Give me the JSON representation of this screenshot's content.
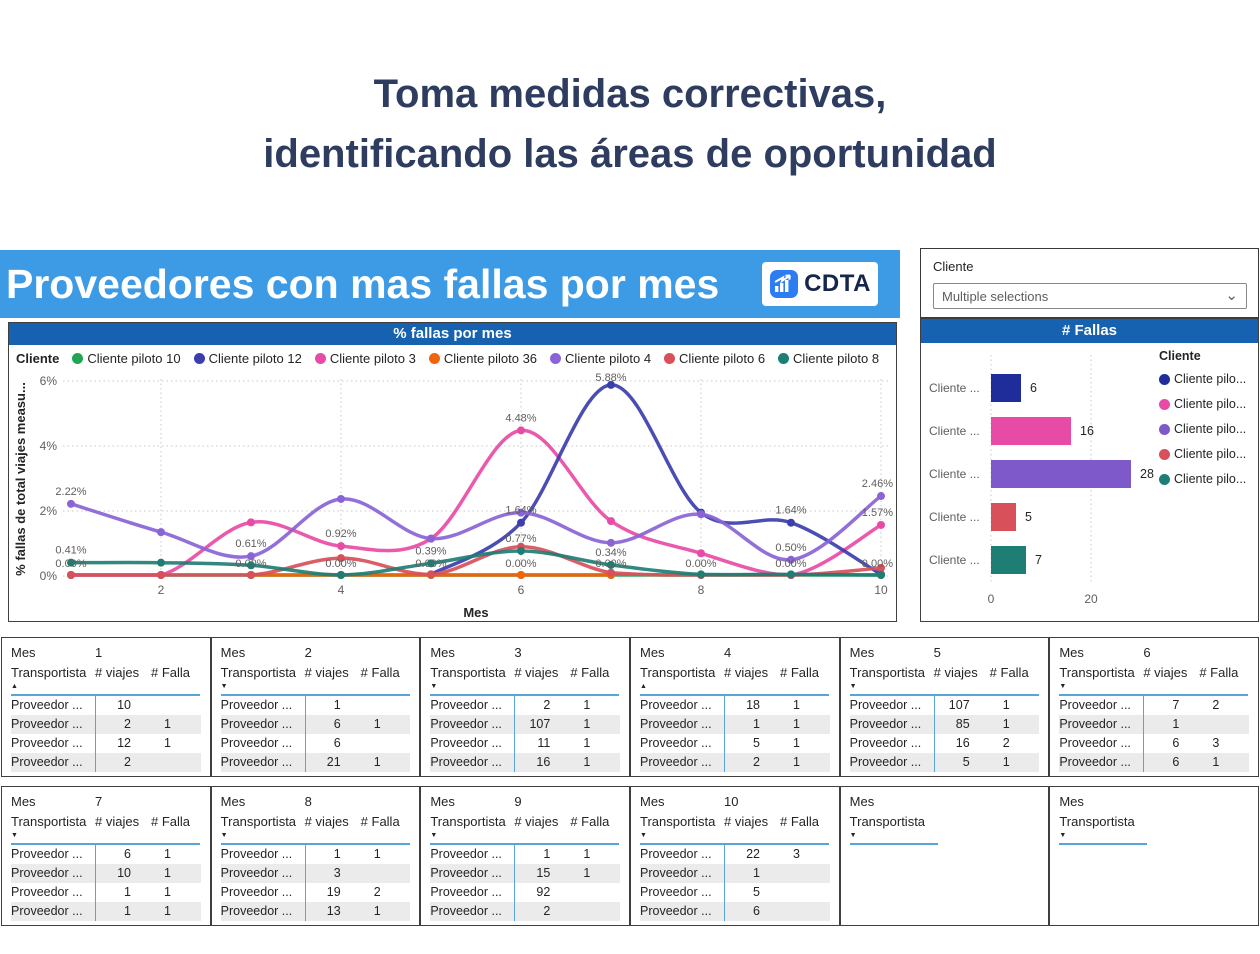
{
  "page_title": {
    "line1": "Toma medidas correctivas,",
    "line2": "identificando las áreas de oportunidad"
  },
  "header": {
    "title": "Proveedores con mas fallas por mes",
    "logo_text": "CDTA"
  },
  "filter": {
    "label": "Cliente",
    "value": "Multiple selections"
  },
  "chart_data": [
    {
      "type": "line",
      "title": "% fallas por mes",
      "xlabel": "Mes",
      "ylabel": "% fallas de total viajes measu...",
      "legend_title": "Cliente",
      "legend_position": "top",
      "grid": true,
      "x": [
        1,
        2,
        3,
        4,
        5,
        6,
        7,
        8,
        9,
        10
      ],
      "x_ticks": [
        2,
        4,
        6,
        8,
        10
      ],
      "y_ticks": [
        {
          "v": 0,
          "t": "0%"
        },
        {
          "v": 2,
          "t": "2%"
        },
        {
          "v": 4,
          "t": "4%"
        },
        {
          "v": 6,
          "t": "6%"
        }
      ],
      "ylim": [
        0,
        6
      ],
      "series": [
        {
          "name": "Cliente piloto 10",
          "color": "#23a455",
          "values": [
            0,
            0,
            0,
            0,
            0,
            0,
            0,
            0,
            0,
            0
          ]
        },
        {
          "name": "Cliente piloto 12",
          "color": "#3b3eae",
          "values": [
            null,
            null,
            null,
            null,
            0.05,
            1.64,
            5.88,
            1.95,
            1.64,
            0.05
          ]
        },
        {
          "name": "Cliente piloto 3",
          "color": "#e84ba5",
          "values": [
            0,
            0,
            1.65,
            0.92,
            1.15,
            4.48,
            1.69,
            0.7,
            0,
            1.57
          ]
        },
        {
          "name": "Cliente piloto 36",
          "color": "#f2630a",
          "values": [
            null,
            null,
            0,
            0,
            0,
            0,
            0,
            null,
            null,
            null
          ]
        },
        {
          "name": "Cliente piloto 4",
          "color": "#8a64d6",
          "values": [
            2.22,
            1.35,
            0.61,
            2.37,
            1.15,
            1.95,
            1.02,
            1.9,
            0.5,
            2.46
          ]
        },
        {
          "name": "Cliente piloto 6",
          "color": "#d8505a",
          "values": [
            0,
            0,
            0,
            0.55,
            0.05,
            0.9,
            0.1,
            0,
            0,
            0.25
          ]
        },
        {
          "name": "Cliente piloto 8",
          "color": "#1e7e74",
          "values": [
            0.41,
            0.41,
            0.33,
            0.03,
            0.39,
            0.77,
            0.34,
            0.05,
            0.05,
            0
          ]
        }
      ],
      "data_labels": [
        {
          "m": 1,
          "v": 2.22,
          "t": "2.22%"
        },
        {
          "m": 1,
          "v": 0.41,
          "t": "0.41%"
        },
        {
          "m": 1,
          "v": 0.0,
          "t": "0.00%"
        },
        {
          "m": 3,
          "v": 0.61,
          "t": "0.61%"
        },
        {
          "m": 3,
          "v": 0.0,
          "t": "0.00%"
        },
        {
          "m": 4,
          "v": 0.92,
          "t": "0.92%"
        },
        {
          "m": 4,
          "v": 0.0,
          "t": "0.00%"
        },
        {
          "m": 5,
          "v": 0.39,
          "t": "0.39%"
        },
        {
          "m": 5,
          "v": 0.0,
          "t": "0.00%"
        },
        {
          "m": 6,
          "v": 4.48,
          "t": "4.48%"
        },
        {
          "m": 6,
          "v": 1.64,
          "t": "1.64%"
        },
        {
          "m": 6,
          "v": 0.77,
          "t": "0.77%"
        },
        {
          "m": 6,
          "v": 0.0,
          "t": "0.00%"
        },
        {
          "m": 7,
          "v": 5.88,
          "t": "5.88%"
        },
        {
          "m": 7,
          "v": 0.34,
          "t": "0.34%"
        },
        {
          "m": 7,
          "v": 0.0,
          "t": "0.00%"
        },
        {
          "m": 8,
          "v": 0.0,
          "t": "0.00%"
        },
        {
          "m": 9,
          "v": 1.64,
          "t": "1.64%"
        },
        {
          "m": 9,
          "v": 0.5,
          "t": "0.50%"
        },
        {
          "m": 9,
          "v": 0.0,
          "t": "0.00%"
        },
        {
          "m": 10,
          "v": 2.46,
          "t": "2.46%"
        },
        {
          "m": 10,
          "v": 1.57,
          "t": "1.57%"
        },
        {
          "m": 10,
          "v": 0.0,
          "t": "0.00%"
        }
      ]
    },
    {
      "type": "bar",
      "orientation": "horizontal",
      "title": "# Fallas",
      "legend_title": "Cliente",
      "categories": [
        "Cliente ...",
        "Cliente ...",
        "Cliente ...",
        "Cliente ...",
        "Cliente ..."
      ],
      "values": [
        6,
        16,
        28,
        5,
        7
      ],
      "colors": [
        "#1f2d9b",
        "#e84ba5",
        "#7d59c9",
        "#d8505a",
        "#1e7e74"
      ],
      "x_ticks": [
        0,
        20
      ],
      "xlim": [
        0,
        30
      ],
      "legend": [
        {
          "label": "Cliente pilo...",
          "color": "#1f2d9b"
        },
        {
          "label": "Cliente pilo...",
          "color": "#e84ba5"
        },
        {
          "label": "Cliente pilo...",
          "color": "#7d59c9"
        },
        {
          "label": "Cliente pilo...",
          "color": "#d8505a"
        },
        {
          "label": "Cliente pilo...",
          "color": "#1e7e74"
        }
      ]
    }
  ],
  "tables": {
    "mes_label": "Mes",
    "columns": [
      "Transportista",
      "# viajes",
      "# Falla"
    ],
    "list": [
      {
        "mes": "1",
        "sort": "asc",
        "rows": [
          [
            "Proveedor ...",
            "10",
            ""
          ],
          [
            "Proveedor ...",
            "2",
            "1"
          ],
          [
            "Proveedor ...",
            "12",
            "1"
          ],
          [
            "Proveedor ...",
            "2",
            ""
          ]
        ]
      },
      {
        "mes": "2",
        "sort": "desc",
        "rows": [
          [
            "Proveedor ...",
            "1",
            ""
          ],
          [
            "Proveedor ...",
            "6",
            "1"
          ],
          [
            "Proveedor ...",
            "6",
            ""
          ],
          [
            "Proveedor ...",
            "21",
            "1"
          ]
        ]
      },
      {
        "mes": "3",
        "sort": "desc",
        "rows": [
          [
            "Proveedor ...",
            "2",
            "1"
          ],
          [
            "Proveedor ...",
            "107",
            "1"
          ],
          [
            "Proveedor ...",
            "11",
            "1"
          ],
          [
            "Proveedor ...",
            "16",
            "1"
          ]
        ]
      },
      {
        "mes": "4",
        "sort": "asc",
        "rows": [
          [
            "Proveedor ...",
            "18",
            "1"
          ],
          [
            "Proveedor ...",
            "1",
            "1"
          ],
          [
            "Proveedor ...",
            "5",
            "1"
          ],
          [
            "Proveedor ...",
            "2",
            "1"
          ]
        ]
      },
      {
        "mes": "5",
        "sort": "desc",
        "rows": [
          [
            "Proveedor ...",
            "107",
            "1"
          ],
          [
            "Proveedor ...",
            "85",
            "1"
          ],
          [
            "Proveedor ...",
            "16",
            "2"
          ],
          [
            "Proveedor ...",
            "5",
            "1"
          ]
        ]
      },
      {
        "mes": "6",
        "sort": "desc",
        "rows": [
          [
            "Proveedor ...",
            "7",
            "2"
          ],
          [
            "Proveedor ...",
            "1",
            ""
          ],
          [
            "Proveedor ...",
            "6",
            "3"
          ],
          [
            "Proveedor ...",
            "6",
            "1"
          ]
        ]
      },
      {
        "mes": "7",
        "sort": "desc",
        "rows": [
          [
            "Proveedor ...",
            "6",
            "1"
          ],
          [
            "Proveedor ...",
            "10",
            "1"
          ],
          [
            "Proveedor ...",
            "1",
            "1"
          ],
          [
            "Proveedor ...",
            "1",
            "1"
          ]
        ]
      },
      {
        "mes": "8",
        "sort": "desc",
        "rows": [
          [
            "Proveedor ...",
            "1",
            "1"
          ],
          [
            "Proveedor ...",
            "3",
            ""
          ],
          [
            "Proveedor ...",
            "19",
            "2"
          ],
          [
            "Proveedor ...",
            "13",
            "1"
          ]
        ]
      },
      {
        "mes": "9",
        "sort": "desc",
        "rows": [
          [
            "Proveedor ...",
            "1",
            "1"
          ],
          [
            "Proveedor ...",
            "15",
            "1"
          ],
          [
            "Proveedor ...",
            "92",
            ""
          ],
          [
            "Proveedor ...",
            "2",
            ""
          ]
        ]
      },
      {
        "mes": "10",
        "sort": "desc",
        "rows": [
          [
            "Proveedor ...",
            "22",
            "3"
          ],
          [
            "Proveedor ...",
            "1",
            ""
          ],
          [
            "Proveedor ...",
            "5",
            ""
          ],
          [
            "Proveedor ...",
            "6",
            ""
          ]
        ]
      },
      {
        "mes": "",
        "sort": "desc",
        "empty": true,
        "rows": []
      },
      {
        "mes": "",
        "sort": "desc",
        "empty": true,
        "rows": []
      }
    ]
  }
}
